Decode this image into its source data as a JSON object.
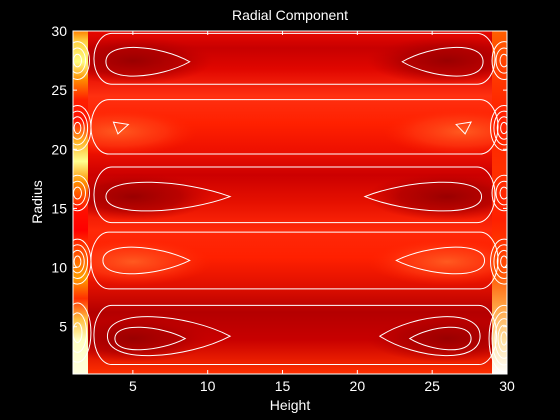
{
  "chart_data": {
    "type": "heatmap",
    "subtype": "filled contour plot with contour lines",
    "title": "Radial Component",
    "xlabel": "Height",
    "ylabel": "Radius",
    "xlim": [
      1,
      30
    ],
    "ylim": [
      1,
      30
    ],
    "xticks": [
      5,
      10,
      15,
      20,
      25,
      30
    ],
    "yticks": [
      5,
      10,
      15,
      20,
      25,
      30
    ],
    "colormap": "hot",
    "grid": false,
    "legend": "none",
    "colors": {
      "background": "#000000",
      "text": "#ffffff",
      "contour_lines": "#ffffff",
      "dark_band": "#b00000",
      "mid_band": "#ff2000",
      "edge_highlight": "#ffffc0"
    },
    "field_description_rows": [
      {
        "radius_center": 4,
        "feature": "deep dark-red cells",
        "x_centers": [
          5,
          26
        ]
      },
      {
        "radius_center": 10.5,
        "feature": "bright-red cells",
        "x_centers": [
          5,
          26
        ]
      },
      {
        "radius_center": 16,
        "feature": "dark-red cells",
        "x_centers": [
          5,
          26
        ]
      },
      {
        "radius_center": 21.5,
        "feature": "bright-red band with small cells",
        "x_centers": [
          4,
          27
        ]
      },
      {
        "radius_center": 27.5,
        "feature": "dark-red cells",
        "x_centers": [
          5,
          26
        ]
      }
    ]
  }
}
